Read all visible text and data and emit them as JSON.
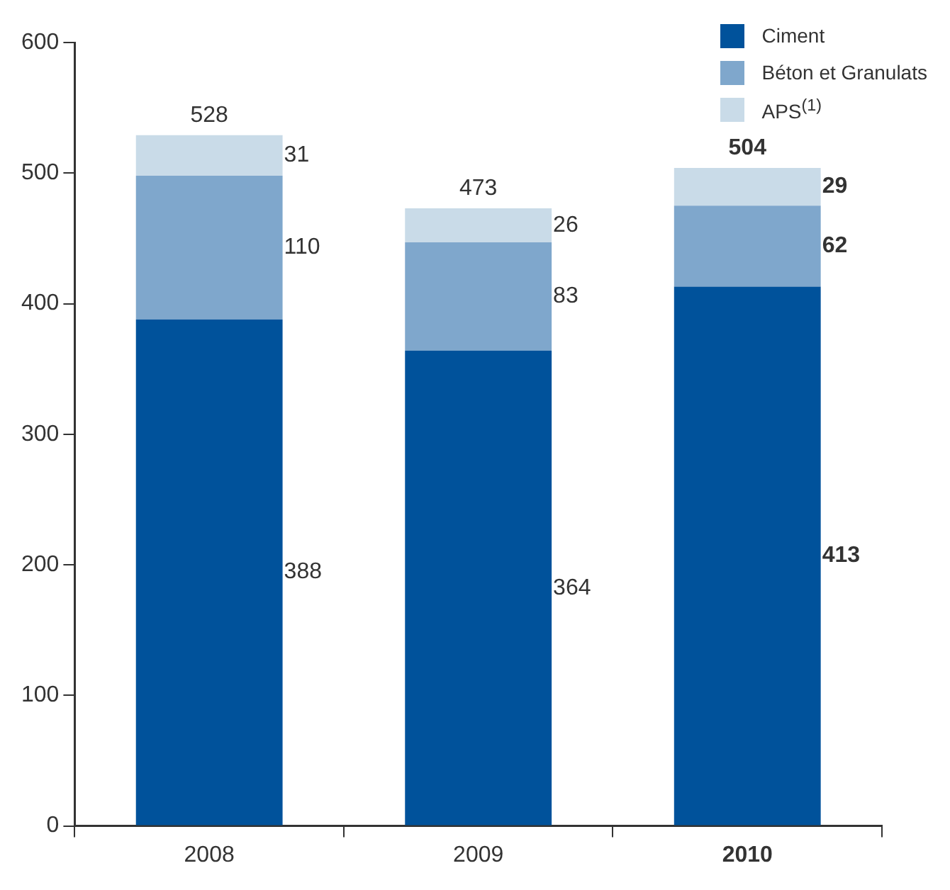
{
  "chart_data": {
    "type": "bar",
    "stacked": true,
    "categories": [
      "2008",
      "2009",
      "2010"
    ],
    "series": [
      {
        "name": "Ciment",
        "color": "#00529b",
        "values": [
          388,
          364,
          413
        ]
      },
      {
        "name": "Béton et Granulats",
        "color": "#7fa7cc",
        "values": [
          110,
          83,
          62
        ]
      },
      {
        "name": "APS$^{(1)}$",
        "color": "#c9dbe8",
        "values": [
          31,
          26,
          29
        ]
      }
    ],
    "totals": [
      "528",
      "473",
      "504"
    ],
    "data_labels": true,
    "ylim": [
      0,
      600
    ],
    "yticks": [
      0,
      100,
      200,
      300,
      400,
      500,
      600
    ],
    "grid": false,
    "legend": "top right"
  }
}
